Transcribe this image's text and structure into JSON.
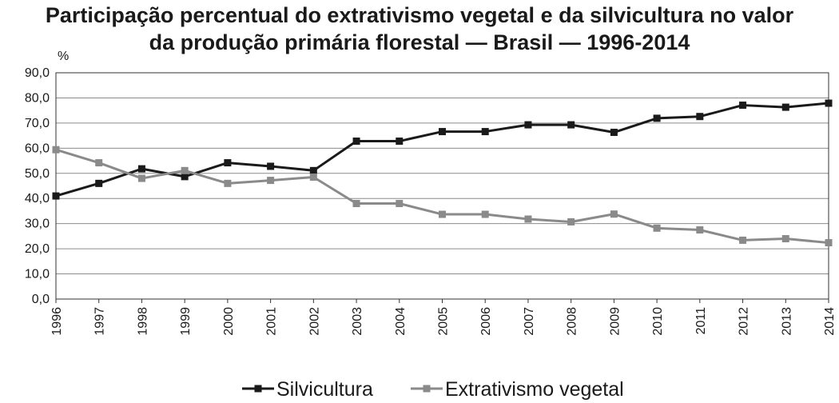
{
  "chart_data": {
    "type": "line",
    "title_line1": "Participação percentual do extrativismo vegetal e da silvicultura no valor",
    "title_line2": "da produção primária florestal — Brasil — 1996-2014",
    "ylabel": "%",
    "ylim": [
      0,
      90
    ],
    "yticks": [
      "0,0",
      "10,0",
      "20,0",
      "30,0",
      "40,0",
      "50,0",
      "60,0",
      "70,0",
      "80,0",
      "90,0"
    ],
    "grid": true,
    "legend_position": "bottom",
    "categories": [
      "1996",
      "1997",
      "1998",
      "1999",
      "2000",
      "2001",
      "2002",
      "2003",
      "2004",
      "2005",
      "2006",
      "2007",
      "2008",
      "2009",
      "2010",
      "2011",
      "2012",
      "2013",
      "2014"
    ],
    "series": [
      {
        "name": "Silvicultura",
        "color": "#1a1a1a",
        "values": [
          41.0,
          46.0,
          51.8,
          48.7,
          54.2,
          52.8,
          51.1,
          62.8,
          62.8,
          66.6,
          66.6,
          69.3,
          69.3,
          66.3,
          71.9,
          72.6,
          77.1,
          76.3,
          77.9
        ]
      },
      {
        "name": "Extrativismo vegetal",
        "color": "#8a8a8a",
        "values": [
          59.4,
          54.2,
          48.0,
          51.1,
          46.0,
          47.2,
          48.5,
          38.0,
          38.0,
          33.7,
          33.7,
          31.8,
          30.7,
          33.8,
          28.2,
          27.5,
          23.4,
          24.0,
          22.4
        ]
      }
    ]
  }
}
